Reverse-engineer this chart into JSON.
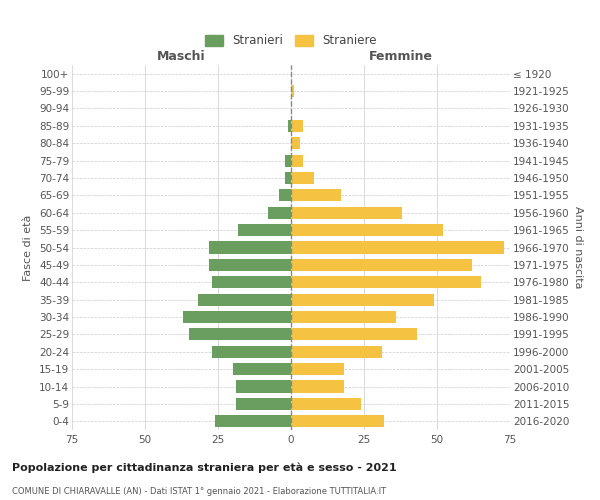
{
  "age_groups": [
    "100+",
    "95-99",
    "90-94",
    "85-89",
    "80-84",
    "75-79",
    "70-74",
    "65-69",
    "60-64",
    "55-59",
    "50-54",
    "45-49",
    "40-44",
    "35-39",
    "30-34",
    "25-29",
    "20-24",
    "15-19",
    "10-14",
    "5-9",
    "0-4"
  ],
  "birth_years": [
    "≤ 1920",
    "1921-1925",
    "1926-1930",
    "1931-1935",
    "1936-1940",
    "1941-1945",
    "1946-1950",
    "1951-1955",
    "1956-1960",
    "1961-1965",
    "1966-1970",
    "1971-1975",
    "1976-1980",
    "1981-1985",
    "1986-1990",
    "1991-1995",
    "1996-2000",
    "2001-2005",
    "2006-2010",
    "2011-2015",
    "2016-2020"
  ],
  "maschi": [
    0,
    0,
    0,
    1,
    0,
    2,
    2,
    4,
    8,
    18,
    28,
    28,
    27,
    32,
    37,
    35,
    27,
    20,
    19,
    19,
    26
  ],
  "femmine": [
    0,
    1,
    0,
    4,
    3,
    4,
    8,
    17,
    38,
    52,
    73,
    62,
    65,
    49,
    36,
    43,
    31,
    18,
    18,
    24,
    32
  ],
  "color_maschi": "#6a9e5e",
  "color_femmine": "#f5c242",
  "title": "Popolazione per cittadinanza straniera per età e sesso - 2021",
  "subtitle": "COMUNE DI CHIARAVALLE (AN) - Dati ISTAT 1° gennaio 2021 - Elaborazione TUTTITALIA.IT",
  "ylabel_left": "Fasce di età",
  "ylabel_right": "Anni di nascita",
  "xlabel_maschi": "Maschi",
  "xlabel_femmine": "Femmine",
  "legend_maschi": "Stranieri",
  "legend_femmine": "Straniere",
  "xlim": 75,
  "background_color": "#ffffff",
  "grid_color": "#cccccc"
}
